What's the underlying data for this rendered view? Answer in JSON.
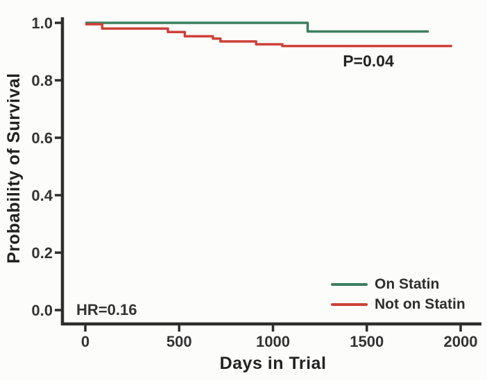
{
  "chart_data": {
    "type": "line",
    "subtype": "kaplan-meier-step",
    "title": "",
    "xlabel": "Days in Trial",
    "ylabel": "Probability of Survival",
    "xlim": [
      0,
      2000
    ],
    "ylim": [
      0.0,
      1.0
    ],
    "x_ticks": [
      0,
      500,
      1000,
      1500,
      2000
    ],
    "y_ticks": [
      1.0,
      0.8,
      0.6,
      0.4,
      0.2,
      0.0
    ],
    "grid": false,
    "legend_position": "inside-bottom-right",
    "series": [
      {
        "name": "On Statin",
        "color": "#3c7f5e",
        "points": [
          [
            0,
            1.0
          ],
          [
            1185,
            1.0
          ],
          [
            1185,
            0.97
          ],
          [
            1830,
            0.97
          ]
        ]
      },
      {
        "name": "Not on Statin",
        "color": "#cd4138",
        "points": [
          [
            0,
            1.0
          ],
          [
            90,
            1.0
          ],
          [
            90,
            0.985
          ],
          [
            440,
            0.985
          ],
          [
            440,
            0.973
          ],
          [
            530,
            0.973
          ],
          [
            530,
            0.958
          ],
          [
            680,
            0.958
          ],
          [
            680,
            0.95
          ],
          [
            720,
            0.95
          ],
          [
            720,
            0.94
          ],
          [
            910,
            0.94
          ],
          [
            910,
            0.93
          ],
          [
            1050,
            0.93
          ],
          [
            1050,
            0.924
          ],
          [
            1955,
            0.924
          ]
        ]
      }
    ],
    "annotations": [
      {
        "text": "P=0.04",
        "x": 1500,
        "y": 0.87
      },
      {
        "text": "HR=0.16",
        "x": 140,
        "y": 0.0
      }
    ]
  },
  "axes": {
    "x_label": "Days in Trial",
    "y_label": "Probability of Survival",
    "x_tick_labels": [
      "0",
      "500",
      "1000",
      "1500",
      "2000"
    ],
    "y_tick_labels": [
      "1.0",
      "0.8",
      "0.6",
      "0.4",
      "0.2",
      "0.0"
    ],
    "axis_color": "#2d2d2d"
  },
  "annotations": {
    "p_value": "P=0.04",
    "hazard_ratio": "HR=0.16"
  },
  "legend": {
    "items": [
      {
        "label": "On Statin",
        "color": "#3c7f5e"
      },
      {
        "label": "Not on Statin",
        "color": "#cd4138"
      }
    ]
  }
}
